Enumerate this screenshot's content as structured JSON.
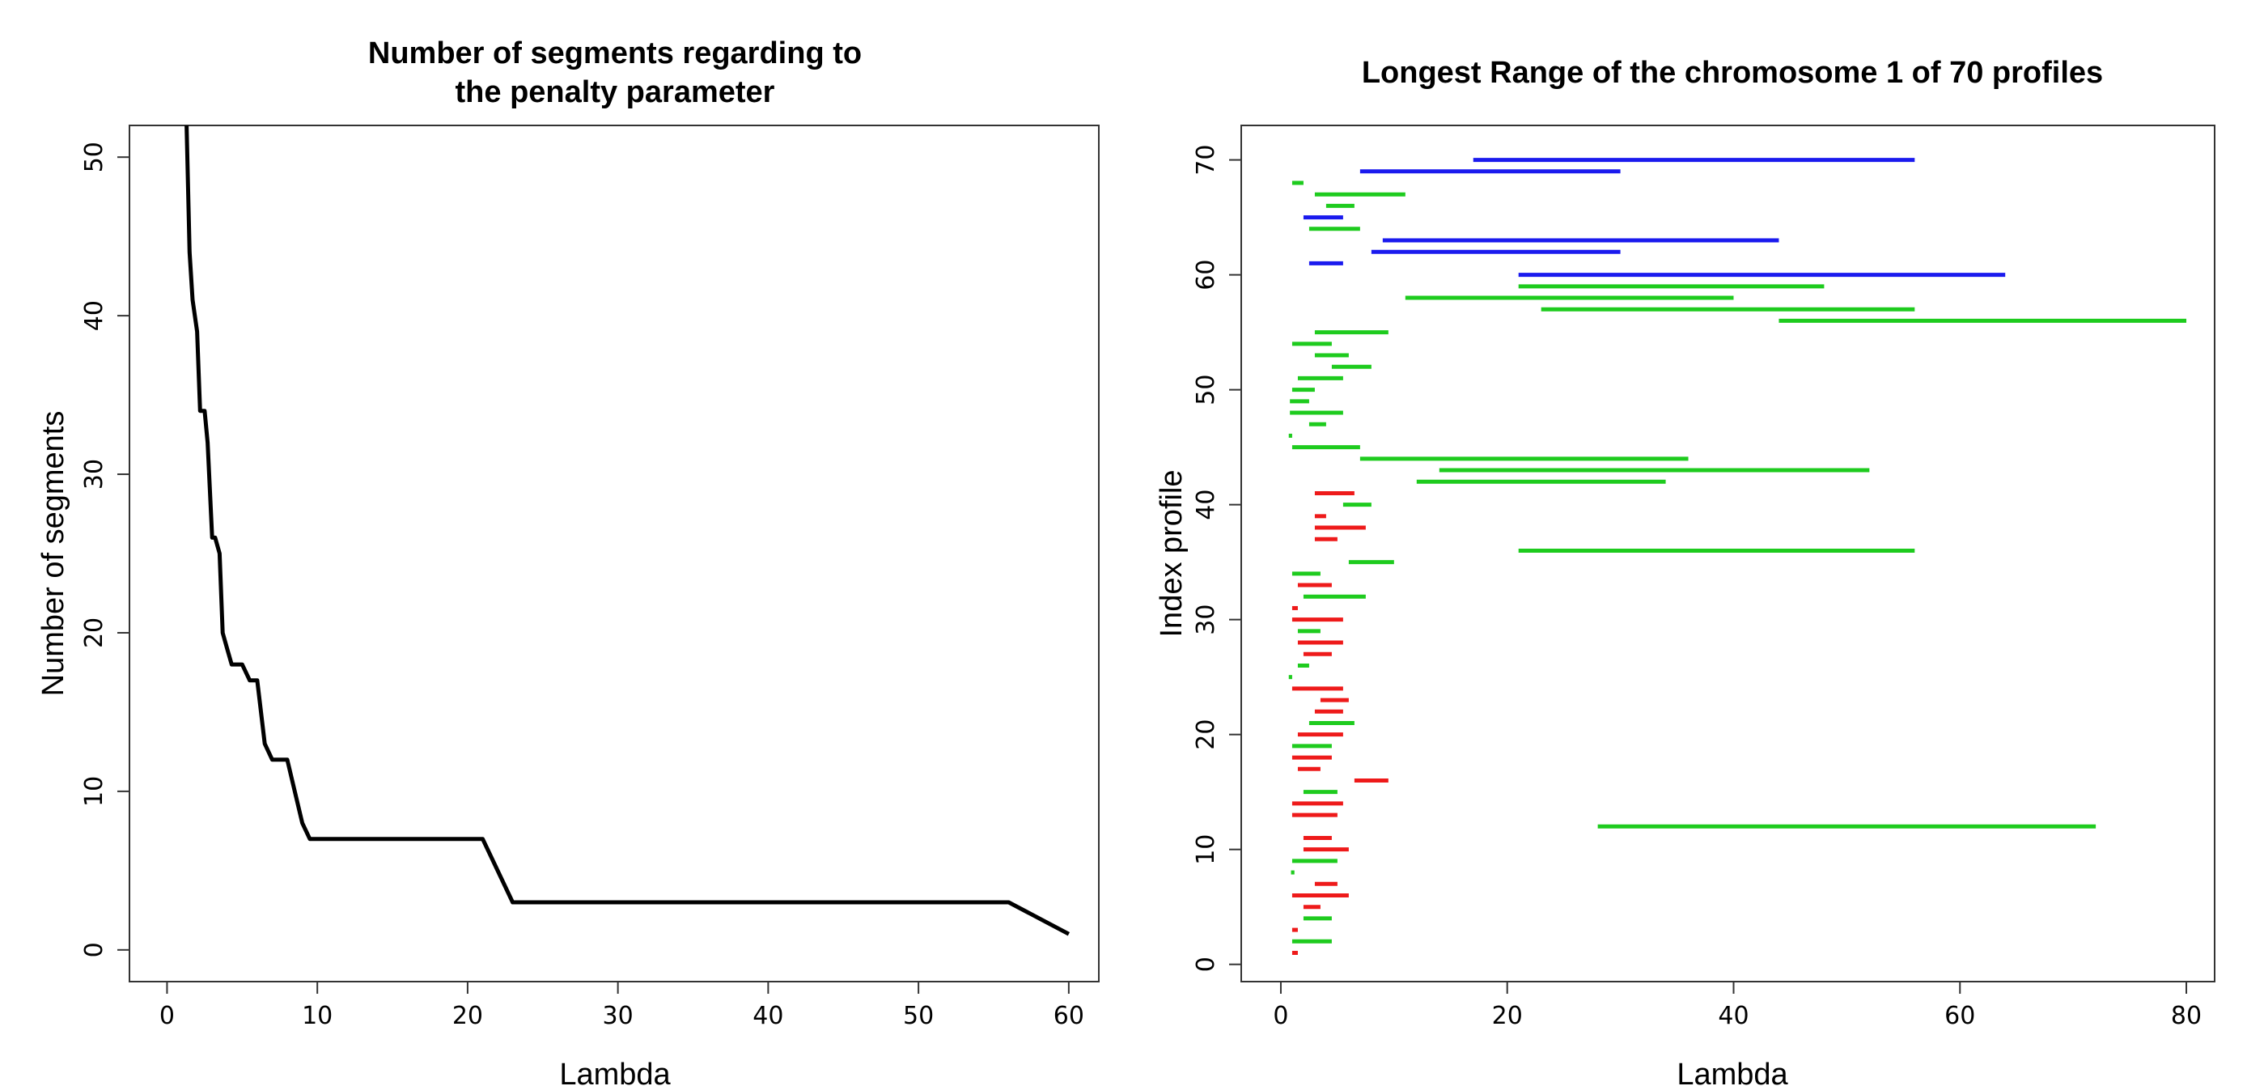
{
  "chart_data": [
    {
      "type": "line",
      "title_lines": [
        "Number of segments regarding to",
        "the penalty parameter"
      ],
      "xlabel": "Lambda",
      "ylabel": "Number of segments",
      "xlim": [
        -2.5,
        62
      ],
      "ylim": [
        -2,
        52
      ],
      "xticks": [
        0,
        10,
        20,
        30,
        40,
        50,
        60
      ],
      "yticks": [
        0,
        10,
        20,
        30,
        40,
        50
      ],
      "line_color": "#000000",
      "series": [
        {
          "x": [
            1.3,
            1.5,
            1.7,
            2.0,
            2.2,
            2.5,
            2.7,
            3.0,
            3.2,
            3.5,
            3.7,
            4.0,
            4.3,
            5.0,
            5.5,
            6.0,
            6.5,
            7.0,
            7.5,
            8.0,
            8.5,
            9.0,
            9.5,
            10.0,
            21.0,
            23.0,
            56.0,
            60.0
          ],
          "y": [
            52,
            44,
            41,
            39,
            34,
            34,
            32,
            26,
            26,
            25,
            20,
            19,
            18,
            18,
            17,
            17,
            13,
            12,
            12,
            12,
            10,
            8,
            7,
            7,
            7,
            3,
            3,
            1
          ]
        }
      ]
    },
    {
      "type": "range",
      "title": "Longest Range of the chromosome 1 of 70 profiles",
      "xlabel": "Lambda",
      "ylabel": "Index profile",
      "xlim": [
        -3.5,
        82.5
      ],
      "ylim": [
        -1.5,
        73
      ],
      "xticks": [
        0,
        20,
        40,
        60,
        80
      ],
      "yticks": [
        0,
        10,
        20,
        30,
        40,
        50,
        60,
        70
      ],
      "colors": {
        "blue": "#1a1aee",
        "green": "#1ecb1e",
        "red": "#ee1a1a"
      },
      "ranges": [
        {
          "y": 70,
          "x0": 17,
          "x1": 56,
          "c": "blue"
        },
        {
          "y": 69,
          "x0": 7,
          "x1": 30,
          "c": "blue"
        },
        {
          "y": 68,
          "x0": 1,
          "x1": 2,
          "c": "green"
        },
        {
          "y": 67,
          "x0": 3,
          "x1": 11,
          "c": "green"
        },
        {
          "y": 66,
          "x0": 4,
          "x1": 6.5,
          "c": "green"
        },
        {
          "y": 65,
          "x0": 2,
          "x1": 5.5,
          "c": "blue"
        },
        {
          "y": 64,
          "x0": 2.5,
          "x1": 7,
          "c": "green"
        },
        {
          "y": 63,
          "x0": 9,
          "x1": 44,
          "c": "blue"
        },
        {
          "y": 62,
          "x0": 8,
          "x1": 30,
          "c": "blue"
        },
        {
          "y": 61,
          "x0": 2.5,
          "x1": 5.5,
          "c": "blue"
        },
        {
          "y": 60,
          "x0": 21,
          "x1": 64,
          "c": "blue"
        },
        {
          "y": 59,
          "x0": 21,
          "x1": 48,
          "c": "green"
        },
        {
          "y": 58,
          "x0": 11,
          "x1": 40,
          "c": "green"
        },
        {
          "y": 57,
          "x0": 23,
          "x1": 56,
          "c": "green"
        },
        {
          "y": 56,
          "x0": 44,
          "x1": 80,
          "c": "green"
        },
        {
          "y": 55,
          "x0": 3,
          "x1": 9.5,
          "c": "green"
        },
        {
          "y": 54,
          "x0": 1,
          "x1": 4.5,
          "c": "green"
        },
        {
          "y": 53,
          "x0": 3,
          "x1": 6,
          "c": "green"
        },
        {
          "y": 52,
          "x0": 4.5,
          "x1": 8,
          "c": "green"
        },
        {
          "y": 51,
          "x0": 1.5,
          "x1": 5.5,
          "c": "green"
        },
        {
          "y": 50,
          "x0": 1,
          "x1": 3,
          "c": "green"
        },
        {
          "y": 49,
          "x0": 0.8,
          "x1": 2.5,
          "c": "green"
        },
        {
          "y": 48,
          "x0": 0.8,
          "x1": 5.5,
          "c": "green"
        },
        {
          "y": 47,
          "x0": 2.5,
          "x1": 4,
          "c": "green"
        },
        {
          "y": 46,
          "x0": 0.7,
          "x1": 1,
          "c": "green"
        },
        {
          "y": 45,
          "x0": 1,
          "x1": 7,
          "c": "green"
        },
        {
          "y": 44,
          "x0": 7,
          "x1": 36,
          "c": "green"
        },
        {
          "y": 43,
          "x0": 14,
          "x1": 52,
          "c": "green"
        },
        {
          "y": 42,
          "x0": 12,
          "x1": 34,
          "c": "green"
        },
        {
          "y": 41,
          "x0": 3,
          "x1": 6.5,
          "c": "red"
        },
        {
          "y": 40,
          "x0": 5.5,
          "x1": 8,
          "c": "green"
        },
        {
          "y": 39,
          "x0": 3,
          "x1": 4,
          "c": "red"
        },
        {
          "y": 38,
          "x0": 3,
          "x1": 7.5,
          "c": "red"
        },
        {
          "y": 37,
          "x0": 3,
          "x1": 5,
          "c": "red"
        },
        {
          "y": 36,
          "x0": 21,
          "x1": 56,
          "c": "green"
        },
        {
          "y": 35,
          "x0": 6,
          "x1": 10,
          "c": "green"
        },
        {
          "y": 34,
          "x0": 1,
          "x1": 3.5,
          "c": "green"
        },
        {
          "y": 33,
          "x0": 1.5,
          "x1": 4.5,
          "c": "red"
        },
        {
          "y": 32,
          "x0": 2,
          "x1": 7.5,
          "c": "green"
        },
        {
          "y": 31,
          "x0": 1,
          "x1": 1.5,
          "c": "red"
        },
        {
          "y": 30,
          "x0": 1,
          "x1": 5.5,
          "c": "red"
        },
        {
          "y": 29,
          "x0": 1.5,
          "x1": 3.5,
          "c": "green"
        },
        {
          "y": 28,
          "x0": 1.5,
          "x1": 5.5,
          "c": "red"
        },
        {
          "y": 27,
          "x0": 2,
          "x1": 4.5,
          "c": "red"
        },
        {
          "y": 26,
          "x0": 1.5,
          "x1": 2.5,
          "c": "green"
        },
        {
          "y": 25,
          "x0": 0.7,
          "x1": 1,
          "c": "green"
        },
        {
          "y": 24,
          "x0": 1,
          "x1": 5.5,
          "c": "red"
        },
        {
          "y": 23,
          "x0": 3.5,
          "x1": 6,
          "c": "red"
        },
        {
          "y": 22,
          "x0": 3,
          "x1": 5.5,
          "c": "red"
        },
        {
          "y": 21,
          "x0": 2.5,
          "x1": 6.5,
          "c": "green"
        },
        {
          "y": 20,
          "x0": 1.5,
          "x1": 5.5,
          "c": "red"
        },
        {
          "y": 19,
          "x0": 1,
          "x1": 4.5,
          "c": "green"
        },
        {
          "y": 18,
          "x0": 1,
          "x1": 4.5,
          "c": "red"
        },
        {
          "y": 17,
          "x0": 1.5,
          "x1": 3.5,
          "c": "red"
        },
        {
          "y": 16,
          "x0": 6.5,
          "x1": 9.5,
          "c": "red"
        },
        {
          "y": 15,
          "x0": 2,
          "x1": 5,
          "c": "green"
        },
        {
          "y": 14,
          "x0": 1,
          "x1": 5.5,
          "c": "red"
        },
        {
          "y": 13,
          "x0": 1,
          "x1": 5,
          "c": "red"
        },
        {
          "y": 12,
          "x0": 28,
          "x1": 72,
          "c": "green"
        },
        {
          "y": 11,
          "x0": 2,
          "x1": 4.5,
          "c": "red"
        },
        {
          "y": 10,
          "x0": 2,
          "x1": 6,
          "c": "red"
        },
        {
          "y": 9,
          "x0": 1,
          "x1": 5,
          "c": "green"
        },
        {
          "y": 8,
          "x0": 0.9,
          "x1": 1.2,
          "c": "green"
        },
        {
          "y": 7,
          "x0": 3,
          "x1": 5,
          "c": "red"
        },
        {
          "y": 6,
          "x0": 1,
          "x1": 6,
          "c": "red"
        },
        {
          "y": 5,
          "x0": 2,
          "x1": 3.5,
          "c": "red"
        },
        {
          "y": 4,
          "x0": 2,
          "x1": 4.5,
          "c": "green"
        },
        {
          "y": 3,
          "x0": 1,
          "x1": 1.5,
          "c": "red"
        },
        {
          "y": 2,
          "x0": 1,
          "x1": 4.5,
          "c": "green"
        },
        {
          "y": 1,
          "x0": 1,
          "x1": 1.5,
          "c": "red"
        }
      ]
    }
  ]
}
